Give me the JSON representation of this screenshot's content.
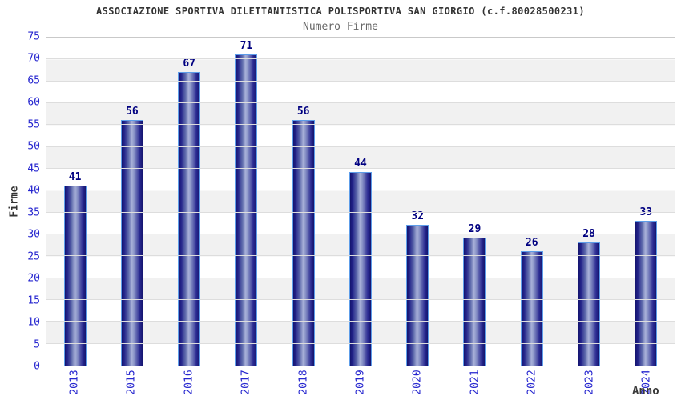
{
  "chart_data": {
    "type": "bar",
    "title": "ASSOCIAZIONE SPORTIVA DILETTANTISTICA POLISPORTIVA SAN GIORGIO (c.f.80028500231)",
    "subtitle": "Numero Firme",
    "xlabel": "Anno",
    "ylabel": "Firme",
    "categories": [
      "2013",
      "2015",
      "2016",
      "2017",
      "2018",
      "2019",
      "2020",
      "2021",
      "2022",
      "2023",
      "2024"
    ],
    "values": [
      41,
      56,
      67,
      71,
      56,
      44,
      32,
      29,
      26,
      28,
      33
    ],
    "ylim": [
      0,
      75
    ],
    "ytick_step": 5,
    "grid": true,
    "legend": "none",
    "band_pattern": "alternating horizontal bands every 5 units, white and light gray",
    "colors": {
      "bar_dark": "#14146e",
      "bar_light": "#a9b1d9",
      "bar_border": "#5d9de9",
      "value_label": "#000080",
      "axis_tick_label": "#2626cf",
      "title_text": "#333333",
      "subtitle_text": "#666666",
      "band_gray": "#f1f1f1",
      "gridline": "#dddddd",
      "plot_border": "#c9c9c9"
    }
  }
}
